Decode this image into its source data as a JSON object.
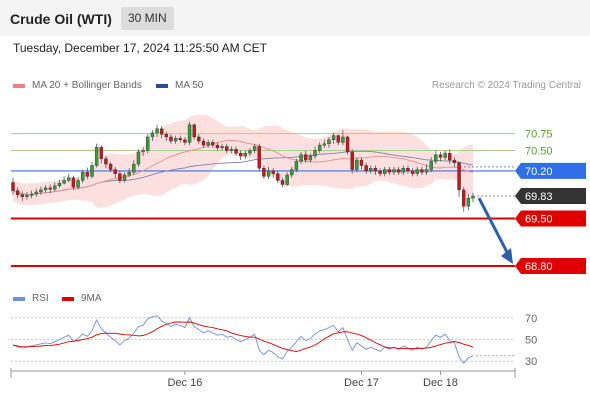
{
  "header": {
    "title": "Crude Oil (WTI)",
    "timeframe": "30 MIN"
  },
  "timestamp": "Tuesday, December 17, 2024 11:25:50 AM CET",
  "legend": {
    "ma20": {
      "label": "MA 20 + Bollinger Bands",
      "color": "#f08080"
    },
    "ma50": {
      "label": "MA 50",
      "color": "#2a4d8f"
    },
    "credit": "Research © 2024 Trading Central"
  },
  "rsi_legend": {
    "rsi": {
      "label": "RSI",
      "color": "#6f8fd8"
    },
    "ma9": {
      "label": "9MA",
      "color": "#e00000"
    }
  },
  "chart_data": {
    "type": "candlestick",
    "symbol": "Crude Oil (WTI)",
    "ylim": [
      68.55,
      71.2
    ],
    "candles": [
      [
        70.03,
        69.91,
        70.1,
        69.85
      ],
      [
        69.91,
        69.85,
        69.96,
        69.8
      ],
      [
        69.85,
        69.82,
        69.9,
        69.76
      ],
      [
        69.82,
        69.84,
        69.89,
        69.78
      ],
      [
        69.84,
        69.86,
        69.91,
        69.8
      ],
      [
        69.86,
        69.89,
        69.94,
        69.82
      ],
      [
        69.89,
        69.92,
        69.97,
        69.85
      ],
      [
        69.92,
        69.95,
        69.99,
        69.88
      ],
      [
        69.95,
        69.93,
        70.0,
        69.87
      ],
      [
        69.93,
        69.98,
        70.03,
        69.9
      ],
      [
        69.98,
        70.02,
        70.07,
        69.95
      ],
      [
        70.02,
        70.06,
        70.12,
        70.0
      ],
      [
        70.06,
        70.1,
        70.16,
        70.03
      ],
      [
        70.1,
        69.96,
        70.13,
        69.92
      ],
      [
        69.96,
        70.06,
        70.1,
        69.93
      ],
      [
        70.06,
        70.18,
        70.22,
        70.02
      ],
      [
        70.18,
        70.12,
        70.25,
        70.08
      ],
      [
        70.12,
        70.28,
        70.33,
        70.09
      ],
      [
        70.28,
        70.55,
        70.6,
        70.25
      ],
      [
        70.55,
        70.38,
        70.58,
        70.31
      ],
      [
        70.38,
        70.3,
        70.42,
        70.24
      ],
      [
        70.3,
        70.22,
        70.33,
        70.18
      ],
      [
        70.22,
        70.16,
        70.26,
        70.1
      ],
      [
        70.16,
        70.06,
        70.2,
        70.02
      ],
      [
        70.06,
        70.14,
        70.18,
        70.03
      ],
      [
        70.14,
        70.18,
        70.24,
        70.11
      ],
      [
        70.18,
        70.3,
        70.36,
        70.14
      ],
      [
        70.3,
        70.48,
        70.52,
        70.26
      ],
      [
        70.48,
        70.5,
        70.55,
        70.42
      ],
      [
        70.5,
        70.7,
        70.74,
        70.46
      ],
      [
        70.7,
        70.76,
        70.8,
        70.64
      ],
      [
        70.76,
        70.82,
        70.88,
        70.7
      ],
      [
        70.82,
        70.74,
        70.86,
        70.68
      ],
      [
        70.74,
        70.7,
        70.78,
        70.64
      ],
      [
        70.7,
        70.64,
        70.74,
        70.6
      ],
      [
        70.64,
        70.68,
        70.72,
        70.6
      ],
      [
        70.68,
        70.66,
        70.72,
        70.62
      ],
      [
        70.66,
        70.62,
        70.7,
        70.58
      ],
      [
        70.62,
        70.88,
        70.92,
        70.58
      ],
      [
        70.88,
        70.7,
        70.9,
        70.66
      ],
      [
        70.7,
        70.64,
        70.74,
        70.6
      ],
      [
        70.64,
        70.58,
        70.68,
        70.54
      ],
      [
        70.58,
        70.62,
        70.66,
        70.54
      ],
      [
        70.62,
        70.58,
        70.66,
        70.54
      ],
      [
        70.58,
        70.54,
        70.62,
        70.5
      ],
      [
        70.54,
        70.56,
        70.6,
        70.5
      ],
      [
        70.56,
        70.5,
        70.6,
        70.46
      ],
      [
        70.5,
        70.52,
        70.56,
        70.46
      ],
      [
        70.52,
        70.46,
        70.56,
        70.42
      ],
      [
        70.46,
        70.42,
        70.5,
        70.36
      ],
      [
        70.42,
        70.46,
        70.5,
        70.38
      ],
      [
        70.46,
        70.5,
        70.54,
        70.42
      ],
      [
        70.5,
        70.56,
        70.6,
        70.46
      ],
      [
        70.56,
        70.24,
        70.6,
        70.2
      ],
      [
        70.24,
        70.12,
        70.28,
        70.08
      ],
      [
        70.12,
        70.2,
        70.26,
        70.08
      ],
      [
        70.2,
        70.16,
        70.24,
        70.1
      ],
      [
        70.16,
        70.06,
        70.2,
        70.02
      ],
      [
        70.06,
        70.0,
        70.1,
        69.96
      ],
      [
        70.0,
        70.14,
        70.18,
        69.98
      ],
      [
        70.14,
        70.22,
        70.26,
        70.1
      ],
      [
        70.22,
        70.34,
        70.38,
        70.18
      ],
      [
        70.34,
        70.44,
        70.48,
        70.3
      ],
      [
        70.44,
        70.36,
        70.5,
        70.32
      ],
      [
        70.36,
        70.42,
        70.46,
        70.32
      ],
      [
        70.42,
        70.5,
        70.56,
        70.38
      ],
      [
        70.5,
        70.58,
        70.62,
        70.46
      ],
      [
        70.58,
        70.6,
        70.66,
        70.54
      ],
      [
        70.6,
        70.66,
        70.7,
        70.54
      ],
      [
        70.66,
        70.72,
        70.76,
        70.6
      ],
      [
        70.72,
        70.62,
        70.74,
        70.58
      ],
      [
        70.62,
        70.7,
        70.8,
        70.58
      ],
      [
        70.7,
        70.48,
        70.72,
        70.44
      ],
      [
        70.48,
        70.22,
        70.52,
        70.16
      ],
      [
        70.22,
        70.36,
        70.4,
        70.18
      ],
      [
        70.36,
        70.28,
        70.4,
        70.22
      ],
      [
        70.28,
        70.2,
        70.32,
        70.16
      ],
      [
        70.2,
        70.24,
        70.28,
        70.16
      ],
      [
        70.24,
        70.2,
        70.28,
        70.14
      ],
      [
        70.2,
        70.16,
        70.24,
        70.12
      ],
      [
        70.16,
        70.22,
        70.26,
        70.12
      ],
      [
        70.22,
        70.18,
        70.26,
        70.14
      ],
      [
        70.18,
        70.22,
        70.26,
        70.14
      ],
      [
        70.22,
        70.18,
        70.26,
        70.14
      ],
      [
        70.18,
        70.24,
        70.28,
        70.14
      ],
      [
        70.24,
        70.2,
        70.28,
        70.16
      ],
      [
        70.2,
        70.16,
        70.24,
        70.12
      ],
      [
        70.16,
        70.22,
        70.26,
        70.12
      ],
      [
        70.22,
        70.18,
        70.26,
        70.14
      ],
      [
        70.18,
        70.22,
        70.3,
        70.14
      ],
      [
        70.22,
        70.34,
        70.4,
        70.18
      ],
      [
        70.34,
        70.44,
        70.5,
        70.3
      ],
      [
        70.44,
        70.4,
        70.48,
        70.34
      ],
      [
        70.4,
        70.46,
        70.5,
        70.36
      ],
      [
        70.46,
        70.36,
        70.52,
        70.3
      ],
      [
        70.36,
        70.32,
        70.4,
        70.26
      ],
      [
        70.32,
        69.92,
        70.34,
        69.82
      ],
      [
        69.92,
        69.68,
        69.96,
        69.6
      ],
      [
        69.68,
        69.8,
        69.86,
        69.62
      ],
      [
        69.8,
        69.83,
        69.88,
        69.74
      ]
    ],
    "levels": [
      {
        "value": 70.75,
        "label": "70.75",
        "kind": "green-line"
      },
      {
        "value": 70.5,
        "label": "70.50",
        "kind": "green-line"
      },
      {
        "value": 70.2,
        "label": "70.20",
        "kind": "pivot"
      },
      {
        "value": 69.83,
        "label": "69.83",
        "kind": "last-price"
      },
      {
        "value": 69.5,
        "label": "69.50",
        "kind": "support"
      },
      {
        "value": 68.8,
        "label": "68.80",
        "kind": "target"
      }
    ],
    "x_ticks": [
      {
        "index": 37,
        "label": "Dec 16"
      },
      {
        "index": 75,
        "label": "Dec 17"
      },
      {
        "index": 92,
        "label": "Dec 18"
      }
    ],
    "rsi": {
      "ylim": [
        20,
        80
      ],
      "levels": [
        70,
        50,
        30
      ],
      "values": [
        45,
        43,
        42,
        43,
        44,
        45,
        46,
        47,
        46,
        48,
        50,
        52,
        54,
        48,
        51,
        55,
        53,
        58,
        68,
        60,
        56,
        52,
        49,
        45,
        49,
        51,
        56,
        62,
        63,
        69,
        71,
        72,
        67,
        65,
        62,
        64,
        63,
        61,
        70,
        62,
        59,
        56,
        58,
        56,
        54,
        55,
        52,
        53,
        50,
        48,
        50,
        52,
        55,
        40,
        36,
        40,
        38,
        34,
        32,
        39,
        43,
        48,
        53,
        49,
        51,
        55,
        58,
        59,
        61,
        63,
        57,
        61,
        50,
        40,
        47,
        44,
        41,
        43,
        41,
        39,
        43,
        41,
        43,
        41,
        44,
        42,
        40,
        43,
        41,
        43,
        49,
        54,
        52,
        55,
        49,
        47,
        34,
        28,
        33,
        35
      ]
    }
  }
}
